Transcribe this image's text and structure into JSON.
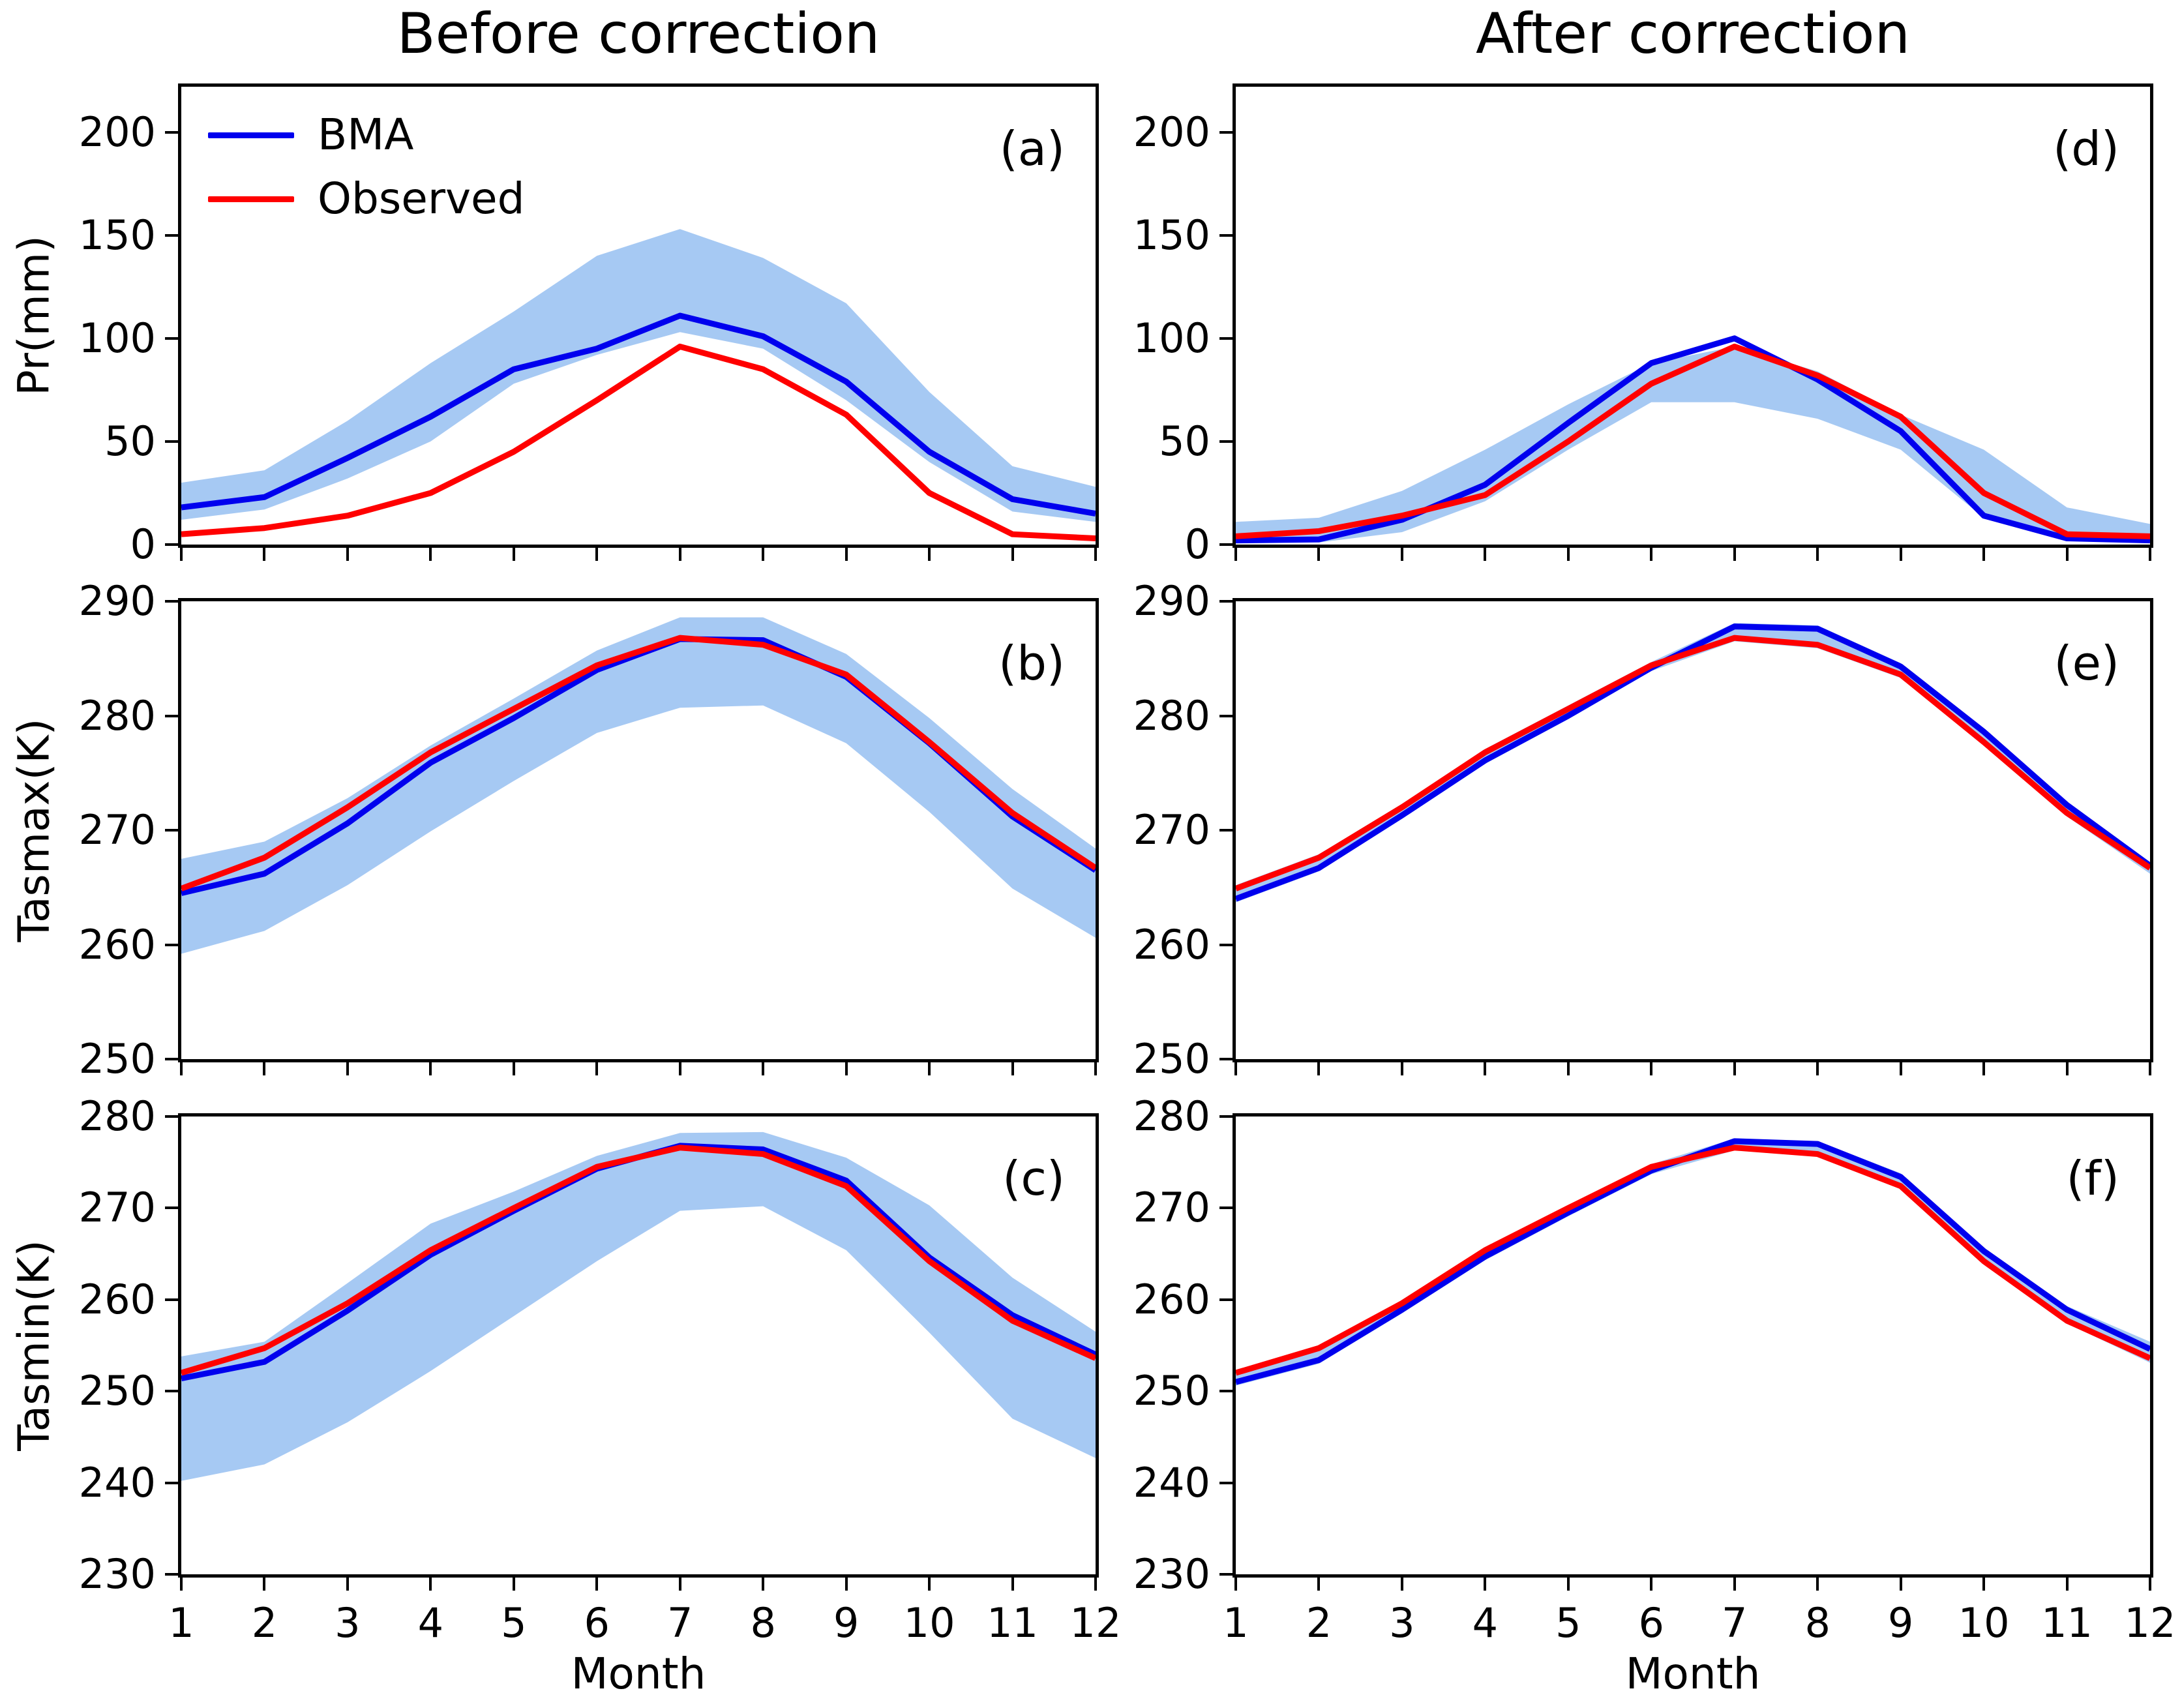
{
  "figure": {
    "column_titles": [
      "Before correction",
      "After correction"
    ],
    "xlabel": "Month",
    "colors": {
      "bma_line": "#0000ee",
      "observed_line": "#ff0000",
      "band": "#a6c9f3",
      "axis": "#000000",
      "background": "#ffffff"
    },
    "legend": {
      "entries": [
        {
          "label": "BMA",
          "color": "#0000ee"
        },
        {
          "label": "Observed",
          "color": "#ff0000"
        }
      ]
    }
  },
  "chart_data": [
    {
      "id": "a",
      "type": "line",
      "panel_label": "(a)",
      "column_title": "Before correction",
      "ylabel": "Pr(mm)",
      "xlabel": "",
      "x": [
        1,
        2,
        3,
        4,
        5,
        6,
        7,
        8,
        9,
        10,
        11,
        12
      ],
      "xlim": [
        1,
        12
      ],
      "ylim": [
        0,
        222
      ],
      "xticks": [
        1,
        2,
        3,
        4,
        5,
        6,
        7,
        8,
        9,
        10,
        11,
        12
      ],
      "yticks": [
        0,
        50,
        100,
        150,
        200
      ],
      "show_x_tick_labels": false,
      "show_legend": true,
      "series": [
        {
          "name": "BMA",
          "color": "#0000ee",
          "values": [
            18,
            23,
            42,
            62,
            85,
            95,
            111,
            101,
            79,
            45,
            22,
            15
          ]
        },
        {
          "name": "Observed",
          "color": "#ff0000",
          "values": [
            5,
            8,
            14,
            25,
            45,
            70,
            96,
            85,
            63,
            25,
            5,
            3
          ]
        }
      ],
      "band": {
        "color": "#a6c9f3",
        "upper": [
          30,
          36,
          60,
          88,
          113,
          140,
          153,
          139,
          117,
          74,
          38,
          28
        ],
        "lower": [
          12,
          17,
          32,
          50,
          78,
          92,
          103,
          95,
          70,
          40,
          16,
          11
        ]
      }
    },
    {
      "id": "b",
      "type": "line",
      "panel_label": "(b)",
      "column_title": "Before correction",
      "ylabel": "Tasmax(K)",
      "xlabel": "",
      "x": [
        1,
        2,
        3,
        4,
        5,
        6,
        7,
        8,
        9,
        10,
        11,
        12
      ],
      "xlim": [
        1,
        12
      ],
      "ylim": [
        250,
        290
      ],
      "xticks": [
        1,
        2,
        3,
        4,
        5,
        6,
        7,
        8,
        9,
        10,
        11,
        12
      ],
      "yticks": [
        250,
        260,
        270,
        280,
        290
      ],
      "show_x_tick_labels": false,
      "show_legend": false,
      "series": [
        {
          "name": "BMA",
          "color": "#0000ee",
          "values": [
            264.5,
            266.2,
            270.6,
            275.9,
            279.8,
            284.0,
            286.7,
            286.6,
            283.4,
            277.6,
            271.2,
            266.5
          ]
        },
        {
          "name": "Observed",
          "color": "#ff0000",
          "values": [
            264.9,
            267.6,
            272.0,
            276.8,
            280.6,
            284.4,
            286.8,
            286.2,
            283.6,
            277.7,
            271.5,
            266.7
          ]
        }
      ],
      "band": {
        "color": "#a6c9f3",
        "upper": [
          267.5,
          269.0,
          272.8,
          277.4,
          281.5,
          285.7,
          288.6,
          288.6,
          285.4,
          279.8,
          273.6,
          268.4
        ],
        "lower": [
          259.2,
          261.2,
          265.2,
          269.9,
          274.3,
          278.5,
          280.7,
          280.9,
          277.6,
          271.6,
          264.9,
          260.6
        ]
      }
    },
    {
      "id": "c",
      "type": "line",
      "panel_label": "(c)",
      "column_title": "Before correction",
      "ylabel": "Tasmin(K)",
      "xlabel": "Month",
      "x": [
        1,
        2,
        3,
        4,
        5,
        6,
        7,
        8,
        9,
        10,
        11,
        12
      ],
      "xlim": [
        1,
        12
      ],
      "ylim": [
        230,
        280
      ],
      "xticks": [
        1,
        2,
        3,
        4,
        5,
        6,
        7,
        8,
        9,
        10,
        11,
        12
      ],
      "yticks": [
        230,
        240,
        250,
        260,
        270,
        280
      ],
      "show_x_tick_labels": true,
      "show_legend": false,
      "series": [
        {
          "name": "BMA",
          "color": "#0000ee",
          "values": [
            251.4,
            253.2,
            258.8,
            264.9,
            269.7,
            274.3,
            276.8,
            276.4,
            273.0,
            264.6,
            258.3,
            254.0
          ]
        },
        {
          "name": "Observed",
          "color": "#ff0000",
          "values": [
            252.0,
            254.7,
            259.6,
            265.4,
            270.0,
            274.5,
            276.6,
            275.9,
            272.4,
            264.2,
            257.7,
            253.6
          ]
        }
      ],
      "band": {
        "color": "#a6c9f3",
        "upper": [
          253.8,
          255.4,
          261.8,
          268.3,
          271.8,
          275.7,
          278.2,
          278.3,
          275.5,
          270.3,
          262.4,
          256.5
        ],
        "lower": [
          240.2,
          242.0,
          246.6,
          252.2,
          258.2,
          264.2,
          269.7,
          270.2,
          265.4,
          256.4,
          247.0,
          242.7
        ]
      }
    },
    {
      "id": "d",
      "type": "line",
      "panel_label": "(d)",
      "column_title": "After correction",
      "ylabel": "",
      "xlabel": "",
      "x": [
        1,
        2,
        3,
        4,
        5,
        6,
        7,
        8,
        9,
        10,
        11,
        12
      ],
      "xlim": [
        1,
        12
      ],
      "ylim": [
        0,
        222
      ],
      "xticks": [
        1,
        2,
        3,
        4,
        5,
        6,
        7,
        8,
        9,
        10,
        11,
        12
      ],
      "yticks": [
        0,
        50,
        100,
        150,
        200
      ],
      "show_x_tick_labels": false,
      "show_legend": false,
      "series": [
        {
          "name": "BMA",
          "color": "#0000ee",
          "values": [
            2,
            2.5,
            12,
            29,
            59,
            88,
            100,
            80,
            55,
            14,
            3,
            2
          ]
        },
        {
          "name": "Observed",
          "color": "#ff0000",
          "values": [
            4,
            6.5,
            14,
            24,
            50,
            78,
            96,
            82,
            62,
            25,
            5,
            4
          ]
        }
      ],
      "band": {
        "color": "#a6c9f3",
        "upper": [
          11,
          13,
          26,
          46,
          68,
          88,
          96,
          84,
          63,
          46,
          18,
          10
        ],
        "lower": [
          0.5,
          1,
          6,
          21,
          46,
          69,
          69,
          61,
          46,
          13,
          2,
          2
        ]
      }
    },
    {
      "id": "e",
      "type": "line",
      "panel_label": "(e)",
      "column_title": "After correction",
      "ylabel": "",
      "xlabel": "",
      "x": [
        1,
        2,
        3,
        4,
        5,
        6,
        7,
        8,
        9,
        10,
        11,
        12
      ],
      "xlim": [
        1,
        12
      ],
      "ylim": [
        250,
        290
      ],
      "xticks": [
        1,
        2,
        3,
        4,
        5,
        6,
        7,
        8,
        9,
        10,
        11,
        12
      ],
      "yticks": [
        250,
        260,
        270,
        280,
        290
      ],
      "show_x_tick_labels": false,
      "show_legend": false,
      "series": [
        {
          "name": "BMA",
          "color": "#0000ee",
          "values": [
            264.0,
            266.7,
            271.3,
            276.1,
            280.0,
            284.2,
            287.8,
            287.6,
            284.3,
            278.6,
            272.2,
            266.9
          ]
        },
        {
          "name": "Observed",
          "color": "#ff0000",
          "values": [
            264.9,
            267.6,
            272.0,
            276.8,
            280.6,
            284.4,
            286.8,
            286.2,
            283.6,
            277.7,
            271.5,
            266.7
          ]
        }
      ],
      "band": {
        "color": "#a6c9f3",
        "upper": [
          265.2,
          267.9,
          272.3,
          277.1,
          280.9,
          284.7,
          288.1,
          287.9,
          284.6,
          278.9,
          272.5,
          267.2
        ],
        "lower": [
          263.7,
          266.4,
          271.0,
          275.8,
          279.7,
          283.9,
          286.5,
          285.9,
          283.3,
          277.4,
          271.2,
          266.2
        ]
      }
    },
    {
      "id": "f",
      "type": "line",
      "panel_label": "(f)",
      "column_title": "After correction",
      "ylabel": "",
      "xlabel": "Month",
      "x": [
        1,
        2,
        3,
        4,
        5,
        6,
        7,
        8,
        9,
        10,
        11,
        12
      ],
      "xlim": [
        1,
        12
      ],
      "ylim": [
        230,
        280
      ],
      "xticks": [
        1,
        2,
        3,
        4,
        5,
        6,
        7,
        8,
        9,
        10,
        11,
        12
      ],
      "yticks": [
        230,
        240,
        250,
        260,
        270,
        280
      ],
      "show_x_tick_labels": true,
      "show_legend": false,
      "series": [
        {
          "name": "BMA",
          "color": "#0000ee",
          "values": [
            251.0,
            253.4,
            258.9,
            264.7,
            269.5,
            274.1,
            277.3,
            277.0,
            273.4,
            265.3,
            258.9,
            254.6
          ]
        },
        {
          "name": "Observed",
          "color": "#ff0000",
          "values": [
            252.0,
            254.7,
            259.6,
            265.4,
            270.0,
            274.5,
            276.6,
            275.9,
            272.4,
            264.2,
            257.7,
            253.6
          ]
        }
      ],
      "band": {
        "color": "#a6c9f3",
        "upper": [
          252.3,
          255.0,
          259.9,
          265.7,
          270.3,
          274.8,
          277.6,
          277.3,
          273.8,
          265.7,
          259.3,
          255.4
        ],
        "lower": [
          250.6,
          253.0,
          258.5,
          264.3,
          269.1,
          273.7,
          276.3,
          275.6,
          272.1,
          263.9,
          257.4,
          253.1
        ]
      }
    }
  ]
}
